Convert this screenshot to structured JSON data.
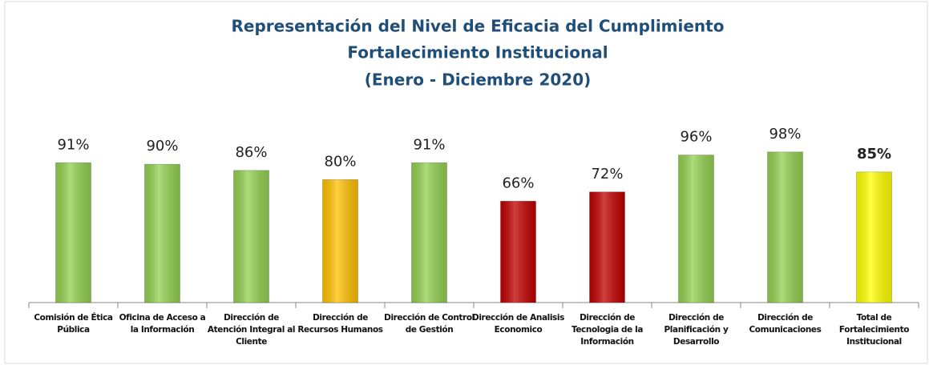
{
  "chart_data": {
    "type": "bar",
    "title": [
      "Representación del Nivel de Eficacia del Cumplimiento",
      "Fortalecimiento Institucional",
      "(Enero - Diciembre 2020)"
    ],
    "categories": [
      "Comisión de Ética Pública",
      "Oficina de Acceso a la Información",
      "Dirección de Atención Integral al Cliente",
      "Dirección de Recursos Humanos",
      "Dirección de Control de Gestión",
      "Dirección de Analisis Economico",
      "Dirección de Tecnologia de la Información",
      "Dirección de Planificación y Desarrollo",
      "Dirección de Comunicaciones",
      "Total de Fortalecimiento Institucional"
    ],
    "values": [
      91,
      90,
      86,
      80,
      91,
      66,
      72,
      96,
      98,
      85
    ],
    "value_labels": [
      "91%",
      "90%",
      "86%",
      "80%",
      "91%",
      "66%",
      "72%",
      "96%",
      "98%",
      "85%"
    ],
    "colors": [
      "#92d050",
      "#92d050",
      "#92d050",
      "#ffc000",
      "#92d050",
      "#c00000",
      "#c00000",
      "#92d050",
      "#92d050",
      "#ffff00"
    ],
    "ylim": [
      0,
      100
    ]
  }
}
